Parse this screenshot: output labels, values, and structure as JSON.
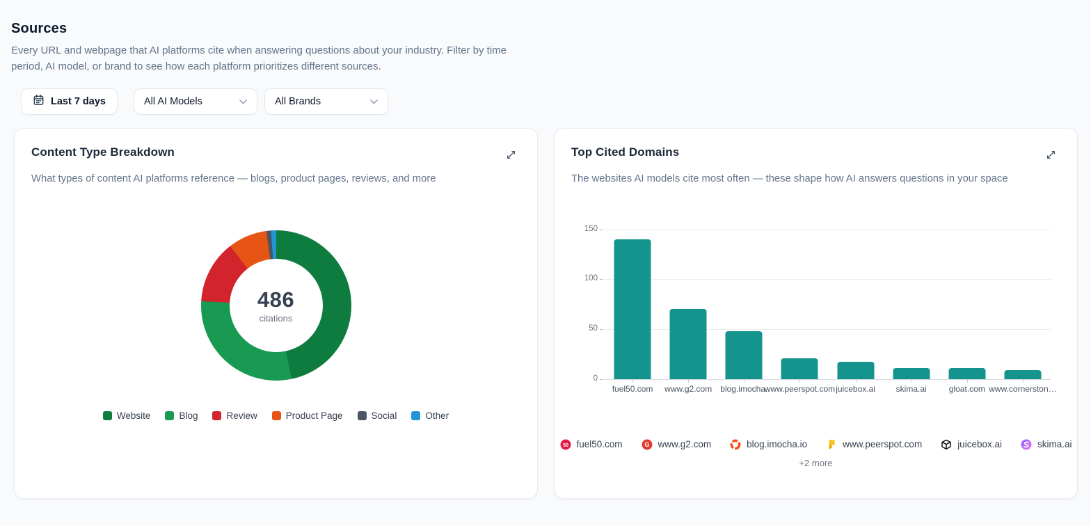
{
  "page": {
    "title": "Sources",
    "description": "Every URL and webpage that AI platforms cite when answering questions about your industry. Filter by time period, AI model, or brand to see how each platform prioritizes different sources."
  },
  "filters": {
    "date_range": "Last 7 days",
    "ai_model": "All AI Models",
    "brand": "All Brands"
  },
  "cards": {
    "content_type": {
      "title": "Content Type Breakdown",
      "subtitle": "What types of content AI platforms reference — blogs, product pages, reviews, and more",
      "center_value": "486",
      "center_label": "citations"
    },
    "top_domains": {
      "title": "Top Cited Domains",
      "subtitle": "The websites AI models cite most often — these shape how AI answers questions in your space",
      "more_label": "+2 more",
      "favicons": [
        {
          "domain": "fuel50.com",
          "icon": "fuel50-favicon",
          "color": "#e11d48"
        },
        {
          "domain": "www.g2.com",
          "icon": "g2-favicon",
          "color": "#e23c2f"
        },
        {
          "domain": "blog.imocha.io",
          "icon": "imocha-favicon",
          "color": "#f4511e"
        },
        {
          "domain": "www.peerspot.com",
          "icon": "peerspot-favicon",
          "color": "#f5c518"
        },
        {
          "domain": "juicebox.ai",
          "icon": "juicebox-favicon",
          "color": "#111111"
        },
        {
          "domain": "skima.ai",
          "icon": "skima-favicon",
          "color": "#9333ea"
        }
      ]
    }
  },
  "chart_data": [
    {
      "type": "pie",
      "title": "Content Type Breakdown",
      "total_label": "486",
      "center_sub_label": "citations",
      "legend_position": "bottom",
      "donut": true,
      "segments": [
        {
          "label": "Website",
          "percent": 46.7,
          "color": "#0e7c3f"
        },
        {
          "label": "Blog",
          "percent": 29.2,
          "color": "#189a52"
        },
        {
          "label": "Review",
          "percent": 13.6,
          "color": "#d3232c"
        },
        {
          "label": "Product Page",
          "percent": 8.4,
          "color": "#e65514"
        },
        {
          "label": "Social",
          "percent": 1.0,
          "color": "#4b5563"
        },
        {
          "label": "Other",
          "percent": 1.1,
          "color": "#2196d4"
        }
      ]
    },
    {
      "type": "bar",
      "title": "Top Cited Domains",
      "categories": [
        "fuel50.com",
        "www.g2.com",
        "blog.imocha.",
        "www.peerspot.com",
        "juicebox.ai",
        "skima.ai",
        "gloat.com",
        "www.cornerston…"
      ],
      "values": [
        140,
        70,
        48,
        21,
        17,
        11,
        11,
        9
      ],
      "bar_color": "#14948c",
      "ylim": [
        0,
        150
      ],
      "yticks": [
        0,
        50,
        100,
        150
      ],
      "grid": true,
      "legend_position": "none"
    }
  ]
}
